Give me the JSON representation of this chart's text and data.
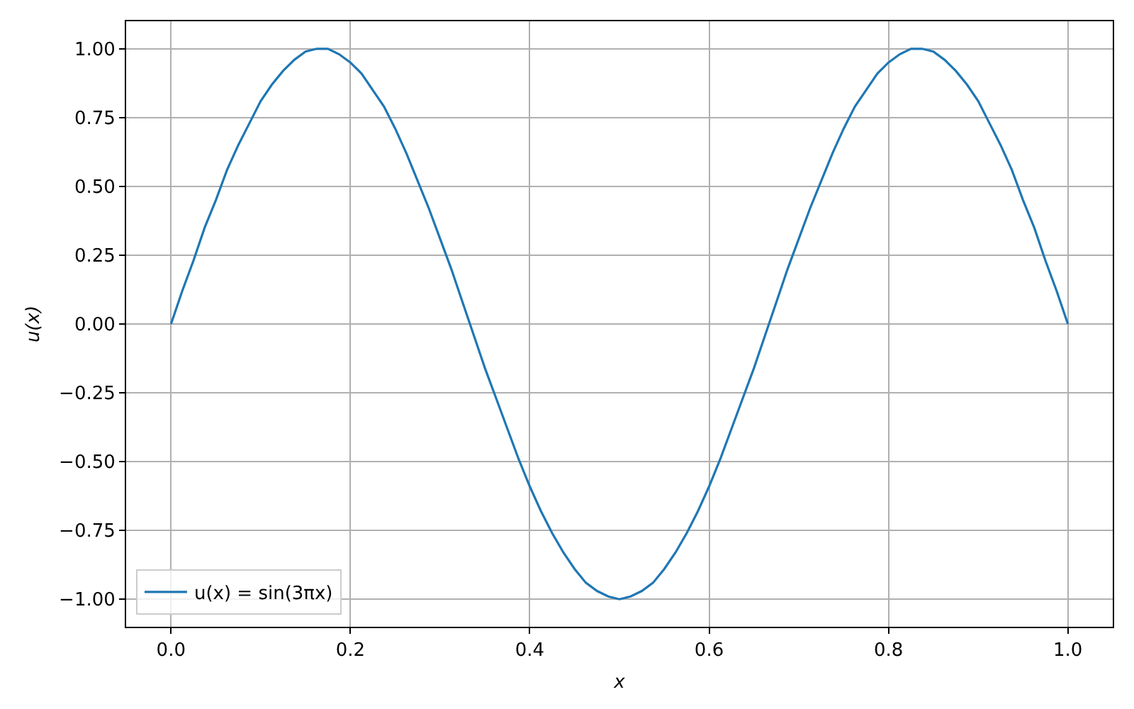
{
  "chart_data": {
    "type": "line",
    "xlabel": "x",
    "ylabel": "u(x)",
    "x": [
      0,
      0.0125,
      0.025,
      0.0375,
      0.05,
      0.0625,
      0.075,
      0.0875,
      0.1,
      0.1125,
      0.125,
      0.1375,
      0.15,
      0.1625,
      0.167,
      0.175,
      0.1875,
      0.2,
      0.2125,
      0.225,
      0.2375,
      0.25,
      0.2625,
      0.275,
      0.2875,
      0.3,
      0.3125,
      0.325,
      0.3375,
      0.35,
      0.3625,
      0.375,
      0.3875,
      0.4,
      0.4125,
      0.425,
      0.4375,
      0.45,
      0.4625,
      0.475,
      0.4875,
      0.5,
      0.5125,
      0.525,
      0.5375,
      0.55,
      0.5625,
      0.575,
      0.5875,
      0.6,
      0.6125,
      0.625,
      0.6375,
      0.65,
      0.6625,
      0.675,
      0.6875,
      0.7,
      0.7125,
      0.725,
      0.7375,
      0.75,
      0.7625,
      0.775,
      0.7875,
      0.8,
      0.8125,
      0.825,
      0.833,
      0.8375,
      0.85,
      0.8625,
      0.875,
      0.8875,
      0.9,
      0.9125,
      0.925,
      0.9375,
      0.95,
      0.9625,
      0.975,
      0.9875,
      1
    ],
    "series": [
      {
        "name": "u(x) = sin(3πx)",
        "color": "#1f77b4",
        "values": [
          0,
          0.12,
          0.23,
          0.35,
          0.45,
          0.56,
          0.65,
          0.73,
          0.81,
          0.87,
          0.92,
          0.96,
          0.99,
          1.0,
          1.0,
          1.0,
          0.98,
          0.95,
          0.91,
          0.85,
          0.79,
          0.71,
          0.62,
          0.52,
          0.42,
          0.31,
          0.2,
          0.08,
          -0.04,
          -0.16,
          -0.27,
          -0.38,
          -0.49,
          -0.59,
          -0.68,
          -0.76,
          -0.83,
          -0.89,
          -0.94,
          -0.97,
          -0.99,
          -1.0,
          -0.99,
          -0.97,
          -0.94,
          -0.89,
          -0.83,
          -0.76,
          -0.68,
          -0.59,
          -0.49,
          -0.38,
          -0.27,
          -0.16,
          -0.04,
          0.08,
          0.2,
          0.31,
          0.42,
          0.52,
          0.62,
          0.71,
          0.79,
          0.85,
          0.91,
          0.95,
          0.98,
          1.0,
          1.0,
          1.0,
          0.99,
          0.96,
          0.92,
          0.87,
          0.81,
          0.73,
          0.65,
          0.56,
          0.45,
          0.35,
          0.23,
          0.12,
          0
        ]
      }
    ],
    "xlim": [
      -0.05,
      1.05
    ],
    "xticks": [
      {
        "value": 0,
        "label": "0.0"
      },
      0.2,
      0.4,
      0.6,
      0.8,
      {
        "value": 1,
        "label": "1.0"
      }
    ],
    "ylim": [
      -1.1,
      1.1
    ],
    "yticks": [
      {
        "value": -1,
        "label": "−1.00"
      },
      {
        "value": -0.75,
        "label": "−0.75"
      },
      {
        "value": -0.5,
        "label": "−0.50"
      },
      {
        "value": -0.25,
        "label": "−0.25"
      },
      {
        "value": 0,
        "label": "0.00"
      },
      {
        "value": 0.25,
        "label": "0.25"
      },
      {
        "value": 0.5,
        "label": "0.50"
      },
      {
        "value": 0.75,
        "label": "0.75"
      },
      {
        "value": 1,
        "label": "1.00"
      }
    ],
    "grid": true,
    "legend": "bottom left",
    "line_style": "solid"
  }
}
